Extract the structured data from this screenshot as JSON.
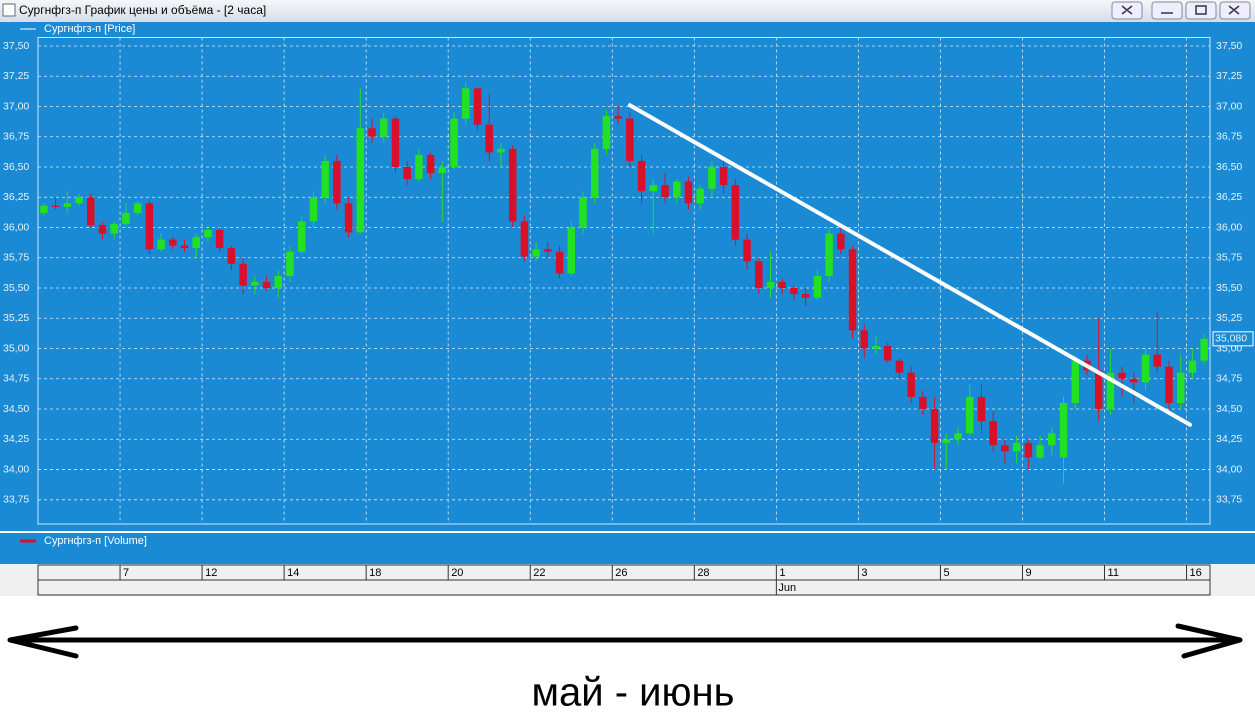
{
  "window_title": "Сургнфгз-п График цены и объёма - [2 часа]",
  "caption": "май - июнь",
  "chart_data": {
    "type": "candlestick",
    "price_legend": "Сургнфгз-п [Price]",
    "volume_legend": "Сургнфгз-п [Volume]",
    "month_label": "Jun",
    "up_color": "#22e022",
    "down_color": "#d8102a",
    "background": "#1a8ad4",
    "grid": true,
    "ylim": [
      33.55,
      37.57
    ],
    "yticks": [
      {
        "value": 33.75,
        "label": "33,75"
      },
      {
        "value": 34.0,
        "label": "34,00"
      },
      {
        "value": 34.25,
        "label": "34,25"
      },
      {
        "value": 34.5,
        "label": "34,50"
      },
      {
        "value": 34.75,
        "label": "34,75"
      },
      {
        "value": 35.0,
        "label": "35,00"
      },
      {
        "value": 35.25,
        "label": "35,25"
      },
      {
        "value": 35.5,
        "label": "35,50"
      },
      {
        "value": 35.75,
        "label": "35,75"
      },
      {
        "value": 36.0,
        "label": "36,00"
      },
      {
        "value": 36.25,
        "label": "36,25"
      },
      {
        "value": 36.5,
        "label": "36,50"
      },
      {
        "value": 36.75,
        "label": "36,75"
      },
      {
        "value": 37.0,
        "label": "37,00"
      },
      {
        "value": 37.25,
        "label": "37,25"
      },
      {
        "value": 37.5,
        "label": "37,50"
      }
    ],
    "last_price": {
      "value": 35.08,
      "label": "35,080"
    },
    "trendline": {
      "from": [
        50.5,
        37.01
      ],
      "to": [
        98.3,
        34.37
      ]
    },
    "categories": [
      null,
      null,
      null,
      null,
      null,
      null,
      null,
      "7",
      null,
      null,
      null,
      null,
      null,
      null,
      "12",
      null,
      null,
      null,
      null,
      null,
      null,
      "14",
      null,
      null,
      null,
      null,
      null,
      null,
      "18",
      null,
      null,
      null,
      null,
      null,
      null,
      "20",
      null,
      null,
      null,
      null,
      null,
      null,
      "22",
      null,
      null,
      null,
      null,
      null,
      null,
      "26",
      null,
      null,
      null,
      null,
      null,
      null,
      "28",
      null,
      null,
      null,
      null,
      null,
      null,
      "1",
      null,
      null,
      null,
      null,
      null,
      null,
      "3",
      null,
      null,
      null,
      null,
      null,
      null,
      "5",
      null,
      null,
      null,
      null,
      null,
      null,
      "9",
      null,
      null,
      null,
      null,
      null,
      null,
      "11",
      null,
      null,
      null,
      null,
      null,
      null,
      "16",
      null
    ],
    "ohlc": [
      [
        36.12,
        36.2,
        36.1,
        36.18
      ],
      [
        36.18,
        36.25,
        36.15,
        36.17
      ],
      [
        36.17,
        36.3,
        36.12,
        36.2
      ],
      [
        36.2,
        36.28,
        36.18,
        36.25
      ],
      [
        36.25,
        36.28,
        36.0,
        36.02
      ],
      [
        36.02,
        36.05,
        35.9,
        35.95
      ],
      [
        35.95,
        36.05,
        35.9,
        36.03
      ],
      [
        36.03,
        36.2,
        36.0,
        36.12
      ],
      [
        36.12,
        36.22,
        36.1,
        36.2
      ],
      [
        36.2,
        36.22,
        35.78,
        35.82
      ],
      [
        35.82,
        35.95,
        35.8,
        35.9
      ],
      [
        35.9,
        35.92,
        35.82,
        35.85
      ],
      [
        35.85,
        35.9,
        35.8,
        35.83
      ],
      [
        35.83,
        35.95,
        35.75,
        35.92
      ],
      [
        35.92,
        36.02,
        35.88,
        35.98
      ],
      [
        35.98,
        36.0,
        35.8,
        35.83
      ],
      [
        35.83,
        35.85,
        35.65,
        35.7
      ],
      [
        35.7,
        35.75,
        35.45,
        35.52
      ],
      [
        35.52,
        35.6,
        35.45,
        35.55
      ],
      [
        35.55,
        35.6,
        35.48,
        35.5
      ],
      [
        35.5,
        35.65,
        35.42,
        35.6
      ],
      [
        35.6,
        35.85,
        35.55,
        35.8
      ],
      [
        35.8,
        36.1,
        35.78,
        36.05
      ],
      [
        36.05,
        36.3,
        36.0,
        36.25
      ],
      [
        36.25,
        36.6,
        36.2,
        36.55
      ],
      [
        36.55,
        36.6,
        36.15,
        36.2
      ],
      [
        36.2,
        36.25,
        35.92,
        35.96
      ],
      [
        35.96,
        37.15,
        35.95,
        36.82
      ],
      [
        36.82,
        36.9,
        36.7,
        36.75
      ],
      [
        36.75,
        36.95,
        36.7,
        36.9
      ],
      [
        36.9,
        36.92,
        36.45,
        36.5
      ],
      [
        36.5,
        36.55,
        36.35,
        36.4
      ],
      [
        36.4,
        36.65,
        36.38,
        36.6
      ],
      [
        36.6,
        36.62,
        36.4,
        36.45
      ],
      [
        36.45,
        36.55,
        36.05,
        36.5
      ],
      [
        36.5,
        36.95,
        36.48,
        36.9
      ],
      [
        36.9,
        37.2,
        36.85,
        37.15
      ],
      [
        37.15,
        37.15,
        36.8,
        36.85
      ],
      [
        36.85,
        37.1,
        36.55,
        36.62
      ],
      [
        36.62,
        36.7,
        36.5,
        36.65
      ],
      [
        36.65,
        36.68,
        36.0,
        36.05
      ],
      [
        36.05,
        36.1,
        35.72,
        35.76
      ],
      [
        35.76,
        35.88,
        35.72,
        35.82
      ],
      [
        35.82,
        35.88,
        35.75,
        35.8
      ],
      [
        35.8,
        35.85,
        35.58,
        35.62
      ],
      [
        35.62,
        36.05,
        35.6,
        36.0
      ],
      [
        36.0,
        36.3,
        35.95,
        36.25
      ],
      [
        36.25,
        36.7,
        36.2,
        36.65
      ],
      [
        36.65,
        36.97,
        36.6,
        36.92
      ],
      [
        36.92,
        37.0,
        36.85,
        36.9
      ],
      [
        36.9,
        36.95,
        36.5,
        36.55
      ],
      [
        36.55,
        36.6,
        36.2,
        36.3
      ],
      [
        36.3,
        36.4,
        35.95,
        36.35
      ],
      [
        36.35,
        36.45,
        36.2,
        36.25
      ],
      [
        36.25,
        36.4,
        36.2,
        36.38
      ],
      [
        36.38,
        36.42,
        36.15,
        36.2
      ],
      [
        36.2,
        36.35,
        36.15,
        36.32
      ],
      [
        36.32,
        36.55,
        36.25,
        36.5
      ],
      [
        36.5,
        36.58,
        36.28,
        36.35
      ],
      [
        36.35,
        36.4,
        35.85,
        35.9
      ],
      [
        35.9,
        35.95,
        35.65,
        35.72
      ],
      [
        35.72,
        35.75,
        35.45,
        35.5
      ],
      [
        35.5,
        35.8,
        35.42,
        35.55
      ],
      [
        35.55,
        35.58,
        35.45,
        35.5
      ],
      [
        35.5,
        35.52,
        35.4,
        35.45
      ],
      [
        35.45,
        35.5,
        35.35,
        35.42
      ],
      [
        35.42,
        35.65,
        35.4,
        35.6
      ],
      [
        35.6,
        36.0,
        35.55,
        35.95
      ],
      [
        35.95,
        36.0,
        35.78,
        35.82
      ],
      [
        35.82,
        35.85,
        35.08,
        35.15
      ],
      [
        35.15,
        35.2,
        34.92,
        35.0
      ],
      [
        35.0,
        35.1,
        34.95,
        35.02
      ],
      [
        35.02,
        35.05,
        34.88,
        34.9
      ],
      [
        34.9,
        34.92,
        34.75,
        34.8
      ],
      [
        34.8,
        34.85,
        34.55,
        34.6
      ],
      [
        34.6,
        34.65,
        34.45,
        34.5
      ],
      [
        34.5,
        34.6,
        34.0,
        34.22
      ],
      [
        34.22,
        34.3,
        34.0,
        34.25
      ],
      [
        34.25,
        34.35,
        34.2,
        34.3
      ],
      [
        34.3,
        34.7,
        34.28,
        34.6
      ],
      [
        34.6,
        34.7,
        34.3,
        34.4
      ],
      [
        34.4,
        34.48,
        34.15,
        34.2
      ],
      [
        34.2,
        34.25,
        34.05,
        34.15
      ],
      [
        34.15,
        34.28,
        34.05,
        34.22
      ],
      [
        34.22,
        34.25,
        34.0,
        34.1
      ],
      [
        34.1,
        34.28,
        34.08,
        34.2
      ],
      [
        34.2,
        34.35,
        34.12,
        34.3
      ],
      [
        34.1,
        34.6,
        33.88,
        34.55
      ],
      [
        34.55,
        34.95,
        34.5,
        34.9
      ],
      [
        34.9,
        34.95,
        34.78,
        34.82
      ],
      [
        34.82,
        35.25,
        34.4,
        34.5
      ],
      [
        34.5,
        35.0,
        34.45,
        34.8
      ],
      [
        34.8,
        34.85,
        34.6,
        34.75
      ],
      [
        34.75,
        34.8,
        34.55,
        34.72
      ],
      [
        34.72,
        35.0,
        34.65,
        34.95
      ],
      [
        34.95,
        35.3,
        34.8,
        34.85
      ],
      [
        34.85,
        34.9,
        34.5,
        34.55
      ],
      [
        34.55,
        34.95,
        34.5,
        34.8
      ],
      [
        34.8,
        35.0,
        34.75,
        34.9
      ],
      [
        34.9,
        35.12,
        34.88,
        35.08
      ]
    ]
  }
}
